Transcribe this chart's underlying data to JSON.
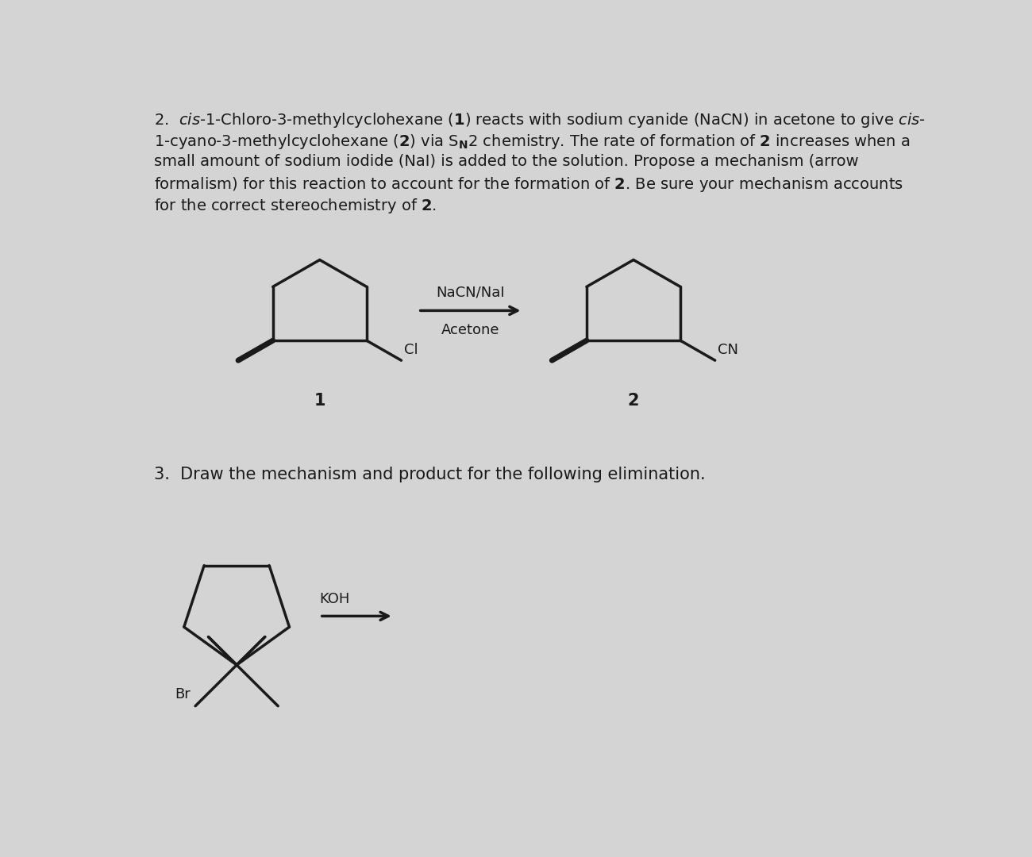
{
  "bg_color": "#d4d4d4",
  "text_color": "#1a1a1a",
  "reagent1_line1": "NaCN/NaI",
  "reagent1_line2": "Acetone",
  "label1": "1",
  "label2": "2",
  "reagent2": "KOH"
}
